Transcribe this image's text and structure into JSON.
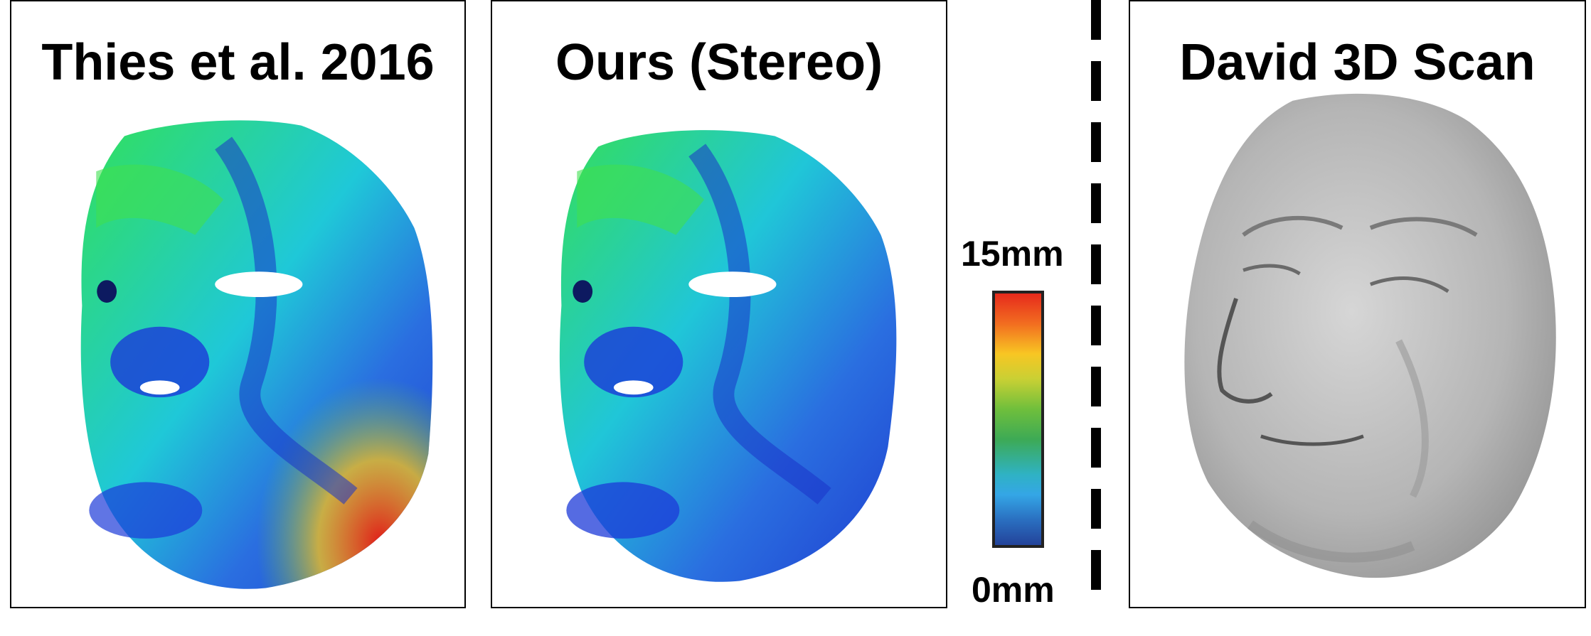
{
  "panels": {
    "left": {
      "title": "Thies et al. 2016"
    },
    "middle": {
      "title": "Ours (Stereo)"
    },
    "right": {
      "title": "David 3D Scan"
    }
  },
  "scale": {
    "max_label": "15mm",
    "min_label": "0mm",
    "colors": [
      "#e62a1c",
      "#f8c623",
      "#6fbf3c",
      "#34a6e6",
      "#23439a"
    ]
  },
  "icons": {
    "face_heatmap": "face-error-heatmap",
    "face_scan": "gray-face-scan"
  }
}
